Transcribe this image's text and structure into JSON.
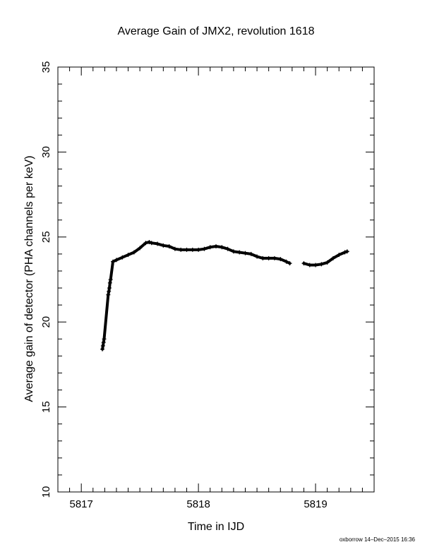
{
  "chart_data": {
    "type": "scatter",
    "title": "Average Gain of JMX2, revolution 1618",
    "xlabel": "Time in IJD",
    "ylabel": "Average gain of detector (PHA channels per keV)",
    "xlim": [
      5816.8,
      5819.5
    ],
    "ylim": [
      10,
      35
    ],
    "xticks": [
      "5817",
      "5818",
      "5819"
    ],
    "xtick_values": [
      5817,
      5818,
      5819
    ],
    "yticks": [
      "10",
      "15",
      "20",
      "25",
      "30",
      "35"
    ],
    "ytick_values": [
      10,
      15,
      20,
      25,
      30,
      35
    ],
    "grid": false,
    "marker": "plus",
    "series": [
      {
        "values": [
          [
            5817.18,
            18.4
          ],
          [
            5817.185,
            18.6
          ],
          [
            5817.19,
            18.8
          ],
          [
            5817.195,
            19.0
          ],
          [
            5817.23,
            21.6
          ],
          [
            5817.235,
            21.8
          ],
          [
            5817.24,
            22.0
          ],
          [
            5817.245,
            22.3
          ],
          [
            5817.25,
            22.5
          ],
          [
            5817.27,
            23.55
          ],
          [
            5817.3,
            23.65
          ],
          [
            5817.35,
            23.8
          ],
          [
            5817.4,
            23.95
          ],
          [
            5817.45,
            24.1
          ],
          [
            5817.5,
            24.35
          ],
          [
            5817.55,
            24.65
          ],
          [
            5817.58,
            24.7
          ],
          [
            5817.6,
            24.65
          ],
          [
            5817.65,
            24.6
          ],
          [
            5817.7,
            24.5
          ],
          [
            5817.75,
            24.45
          ],
          [
            5817.8,
            24.3
          ],
          [
            5817.85,
            24.25
          ],
          [
            5817.9,
            24.25
          ],
          [
            5817.95,
            24.25
          ],
          [
            5818.0,
            24.25
          ],
          [
            5818.05,
            24.3
          ],
          [
            5818.1,
            24.4
          ],
          [
            5818.15,
            24.45
          ],
          [
            5818.2,
            24.4
          ],
          [
            5818.25,
            24.3
          ],
          [
            5818.3,
            24.15
          ],
          [
            5818.35,
            24.1
          ],
          [
            5818.4,
            24.05
          ],
          [
            5818.45,
            24.0
          ],
          [
            5818.5,
            23.85
          ],
          [
            5818.55,
            23.75
          ],
          [
            5818.6,
            23.75
          ],
          [
            5818.65,
            23.75
          ],
          [
            5818.7,
            23.7
          ],
          [
            5818.75,
            23.55
          ],
          [
            5818.78,
            23.45
          ],
          [
            5818.9,
            23.45
          ],
          [
            5818.95,
            23.35
          ],
          [
            5819.0,
            23.35
          ],
          [
            5819.05,
            23.4
          ],
          [
            5819.1,
            23.5
          ],
          [
            5819.15,
            23.75
          ],
          [
            5819.2,
            23.95
          ],
          [
            5819.25,
            24.1
          ],
          [
            5819.27,
            24.15
          ]
        ]
      }
    ]
  },
  "footer": "oxborrow 14–Dec–2015 16:36"
}
